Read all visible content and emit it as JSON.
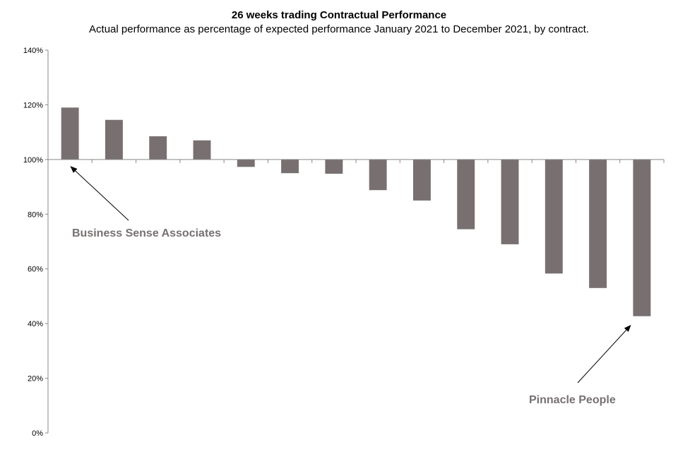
{
  "chart_data": {
    "type": "bar",
    "title": "26 weeks trading Contractual Performance",
    "subtitle": "Actual performance as percentage of expected performance January 2021 to December 2021, by contract.",
    "xlabel": "",
    "ylabel": "",
    "ylim": [
      0,
      140
    ],
    "baseline": 100,
    "yticks": [
      0,
      20,
      40,
      60,
      80,
      100,
      120,
      140
    ],
    "ytick_labels": [
      "0%",
      "20%",
      "40%",
      "60%",
      "80%",
      "100%",
      "120%",
      "140%"
    ],
    "values": [
      119,
      114.5,
      108.5,
      107,
      97.3,
      95,
      94.8,
      88.8,
      85,
      74.5,
      69,
      58.3,
      53,
      42.7
    ],
    "grid": false,
    "bar_color": "#787070",
    "annotations": [
      {
        "text": "Business Sense Associates",
        "bar_index": 0
      },
      {
        "text": "Pinnacle People",
        "bar_index": 13
      }
    ]
  }
}
